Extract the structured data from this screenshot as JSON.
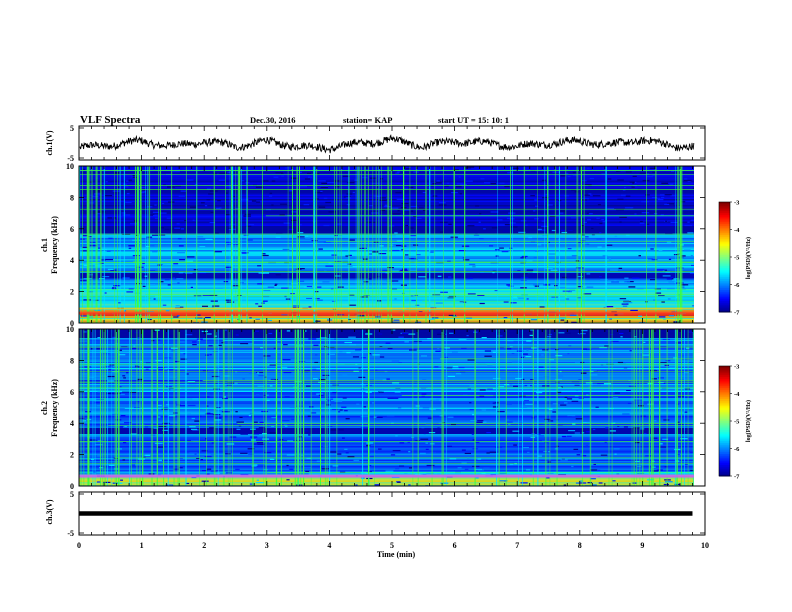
{
  "header": {
    "title": "VLF Spectra",
    "date": "Dec.30, 2016",
    "station": "station= KAP",
    "start": "start  UT =   15: 10: 1"
  },
  "chart_data": [
    {
      "type": "line",
      "ylabel": "ch.1(V)",
      "xlim": [
        0,
        10
      ],
      "ylim": [
        -5,
        5
      ],
      "yticks": [
        "5",
        "-5"
      ],
      "description_values": {
        "x": [
          0,
          0.5,
          1,
          1.5,
          2,
          2.5,
          3,
          3.5,
          4,
          4.5,
          5,
          5.5,
          6,
          6.5,
          7,
          7.5,
          8,
          8.5,
          9,
          9.5,
          9.8
        ],
        "y": [
          -1.5,
          -0.5,
          0.5,
          -1,
          0.5,
          -1,
          0.5,
          -1,
          -1.5,
          0,
          1,
          -1,
          0.5,
          0,
          -1,
          0,
          0.5,
          -0.5,
          1,
          -1,
          -1
        ]
      }
    },
    {
      "type": "heatmap",
      "ylabel": "Frequency (kHz)",
      "channel": "ch.1",
      "xlim": [
        0,
        10
      ],
      "ylim": [
        0,
        10
      ],
      "yticks": [
        "0",
        "2",
        "4",
        "6",
        "8",
        "10"
      ],
      "colorbar": {
        "label": "log(PSD)(V²/Hz)",
        "ticks": [
          "-3",
          "-4",
          "-5",
          "-6",
          "-7"
        ],
        "range": [
          -7,
          -3
        ]
      }
    },
    {
      "type": "heatmap",
      "ylabel": "Frequency (kHz)",
      "channel": "ch.2",
      "xlim": [
        0,
        10
      ],
      "ylim": [
        0,
        10
      ],
      "yticks": [
        "0",
        "2",
        "4",
        "6",
        "8",
        "10"
      ],
      "colorbar": {
        "label": "log(PSD)(V²/Hz)",
        "ticks": [
          "-3",
          "-4",
          "-5",
          "-6",
          "-7"
        ],
        "range": [
          -7,
          -3
        ]
      }
    },
    {
      "type": "line",
      "ylabel": "ch.3(V)",
      "xlim": [
        0,
        10
      ],
      "ylim": [
        -5,
        5
      ],
      "yticks": [
        "5",
        "-5"
      ],
      "x": [
        0,
        9.8
      ],
      "y": [
        0,
        0
      ]
    }
  ],
  "xaxis": {
    "label": "Time  (min)",
    "ticks": [
      "0",
      "1",
      "2",
      "3",
      "4",
      "5",
      "6",
      "7",
      "8",
      "9",
      "10"
    ]
  }
}
